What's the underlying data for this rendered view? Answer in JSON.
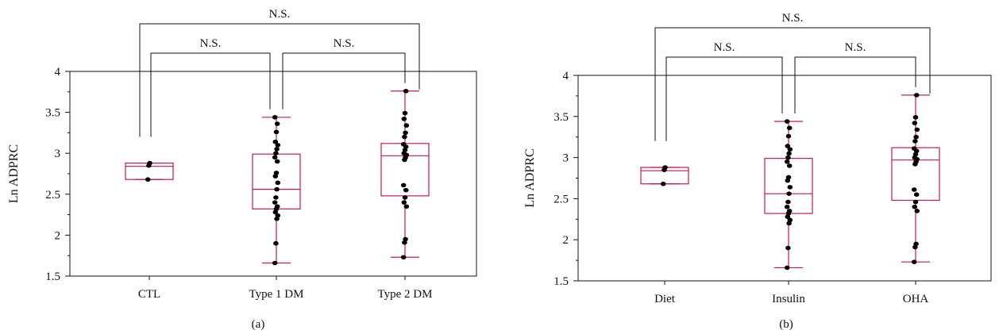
{
  "chart_data": [
    {
      "type": "box",
      "panel_label": "(a)",
      "ylabel": "Ln ADPRC",
      "ylim": [
        1.5,
        4
      ],
      "yticks": [
        "1.5",
        "2",
        "2.5",
        "3",
        "3.5",
        "4"
      ],
      "box_color": "#c2185b",
      "point_color": "#000000",
      "categories": [
        "CTL",
        "Type 1 DM",
        "Type 2 DM"
      ],
      "boxes": [
        {
          "min": 2.68,
          "q1": 2.68,
          "median": 2.84,
          "q3": 2.88,
          "max": 2.88,
          "points": [
            2.68,
            2.85,
            2.88
          ]
        },
        {
          "min": 1.66,
          "q1": 2.32,
          "median": 2.56,
          "q3": 2.99,
          "max": 3.44,
          "points": [
            1.66,
            1.9,
            2.2,
            2.24,
            2.28,
            2.32,
            2.35,
            2.4,
            2.46,
            2.56,
            2.64,
            2.72,
            2.76,
            2.9,
            2.95,
            3.0,
            3.05,
            3.1,
            3.14,
            3.26,
            3.36,
            3.44
          ]
        },
        {
          "min": 1.73,
          "q1": 2.48,
          "median": 2.97,
          "q3": 3.12,
          "max": 3.76,
          "points": [
            1.73,
            1.91,
            1.95,
            2.35,
            2.4,
            2.46,
            2.55,
            2.61,
            2.92,
            2.95,
            2.98,
            3.0,
            3.04,
            3.08,
            3.11,
            3.2,
            3.25,
            3.34,
            3.42,
            3.49,
            3.76
          ]
        }
      ],
      "comparisons": [
        {
          "from": 0,
          "to": 1,
          "label": "N.S."
        },
        {
          "from": 1,
          "to": 2,
          "label": "N.S."
        },
        {
          "from": 0,
          "to": 2,
          "label": "N.S."
        }
      ]
    },
    {
      "type": "box",
      "panel_label": "(b)",
      "ylabel": "Ln ADPRC",
      "ylim": [
        1.5,
        4
      ],
      "yticks": [
        "1.5",
        "2",
        "2.5",
        "3",
        "3.5",
        "4"
      ],
      "box_color": "#c2185b",
      "point_color": "#000000",
      "categories": [
        "Diet",
        "Insulin",
        "OHA"
      ],
      "boxes": [
        {
          "min": 2.68,
          "q1": 2.68,
          "median": 2.84,
          "q3": 2.88,
          "max": 2.88,
          "points": [
            2.68,
            2.85,
            2.88
          ]
        },
        {
          "min": 1.66,
          "q1": 2.32,
          "median": 2.56,
          "q3": 2.99,
          "max": 3.44,
          "points": [
            1.66,
            1.9,
            2.2,
            2.24,
            2.28,
            2.32,
            2.35,
            2.4,
            2.46,
            2.56,
            2.64,
            2.72,
            2.76,
            2.9,
            2.95,
            3.0,
            3.05,
            3.1,
            3.14,
            3.26,
            3.36,
            3.44
          ]
        },
        {
          "min": 1.73,
          "q1": 2.48,
          "median": 2.97,
          "q3": 3.12,
          "max": 3.76,
          "points": [
            1.73,
            1.91,
            1.95,
            2.35,
            2.4,
            2.46,
            2.55,
            2.61,
            2.92,
            2.95,
            2.98,
            3.0,
            3.04,
            3.08,
            3.11,
            3.2,
            3.25,
            3.34,
            3.42,
            3.49,
            3.76
          ]
        }
      ],
      "comparisons": [
        {
          "from": 0,
          "to": 1,
          "label": "N.S."
        },
        {
          "from": 1,
          "to": 2,
          "label": "N.S."
        },
        {
          "from": 0,
          "to": 2,
          "label": "N.S."
        }
      ]
    }
  ]
}
